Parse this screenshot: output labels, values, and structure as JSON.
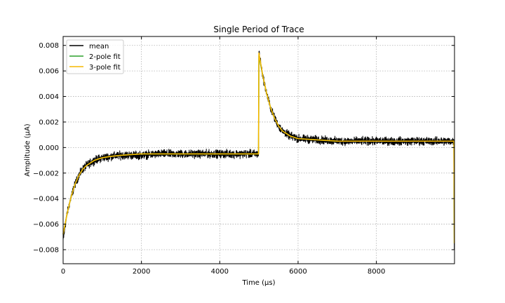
{
  "colors": {
    "mean": "#000000",
    "fit2": "#2ca02c",
    "fit3": "#f5b800",
    "grid": "#b0b0b0",
    "axes": "#000000",
    "background": "#ffffff"
  },
  "chart_data": {
    "type": "line",
    "title": "Single Period of Trace",
    "xlabel": "Time (μs)",
    "ylabel": "Amplitude (μA)",
    "xlim": [
      0,
      9995
    ],
    "ylim": [
      -0.0091,
      0.0087
    ],
    "xticks": [
      0,
      2000,
      4000,
      6000,
      8000
    ],
    "xtick_labels": [
      "0",
      "2000",
      "4000",
      "6000",
      "8000"
    ],
    "yticks": [
      -0.008,
      -0.006,
      -0.004,
      -0.002,
      0.0,
      0.002,
      0.004,
      0.006,
      0.008
    ],
    "ytick_labels": [
      "−0.008",
      "−0.006",
      "−0.004",
      "−0.002",
      "0.000",
      "0.002",
      "0.004",
      "0.006",
      "0.008"
    ],
    "grid": true,
    "legend_position": "top-left",
    "series": [
      {
        "name": "mean",
        "color": "#000000",
        "noise_amplitude": 0.00045,
        "x": [
          0,
          50,
          100,
          200,
          300,
          400,
          500,
          600,
          800,
          1000,
          1200,
          1500,
          2000,
          2500,
          3000,
          3500,
          4000,
          4500,
          4990,
          5000,
          5050,
          5100,
          5200,
          5300,
          5400,
          5500,
          5600,
          5800,
          6000,
          6500,
          7000,
          8000,
          9000,
          9980,
          9990
        ],
        "y": [
          -0.0073,
          -0.0062,
          -0.0052,
          -0.0039,
          -0.0029,
          -0.0022,
          -0.0017,
          -0.0014,
          -0.001,
          -0.0008,
          -0.0007,
          -0.0006,
          -0.0006,
          -0.0005,
          -0.0005,
          -0.0005,
          -0.0005,
          -0.0005,
          -0.0005,
          0.0076,
          0.0065,
          0.0056,
          0.0042,
          0.0031,
          0.0023,
          0.0017,
          0.0013,
          0.0009,
          0.0007,
          0.0006,
          0.0005,
          0.0005,
          0.0005,
          0.0005,
          -0.008
        ]
      },
      {
        "name": "2-pole fit",
        "color": "#2ca02c",
        "x": [
          0,
          50,
          100,
          200,
          300,
          400,
          500,
          600,
          800,
          1000,
          1200,
          1500,
          2000,
          3000,
          4000,
          4990,
          5000,
          5050,
          5100,
          5200,
          5300,
          5400,
          5500,
          5600,
          5800,
          6000,
          6500,
          7000,
          8000,
          9000,
          9980,
          9990
        ],
        "y": [
          -0.0068,
          -0.006,
          -0.0052,
          -0.0039,
          -0.0029,
          -0.0022,
          -0.0017,
          -0.0014,
          -0.001,
          -0.0008,
          -0.0007,
          -0.0006,
          -0.0005,
          -0.0005,
          -0.0005,
          -0.0005,
          0.0072,
          0.0064,
          0.0056,
          0.0042,
          0.0031,
          0.0023,
          0.0017,
          0.0013,
          0.0009,
          0.0007,
          0.0006,
          0.0005,
          0.0005,
          0.0005,
          0.0005,
          -0.0075
        ]
      },
      {
        "name": "3-pole fit",
        "color": "#f5b800",
        "x": [
          0,
          50,
          100,
          200,
          300,
          400,
          500,
          600,
          800,
          1000,
          1200,
          1500,
          2000,
          3000,
          4000,
          4990,
          5000,
          5050,
          5100,
          5200,
          5300,
          5400,
          5500,
          5600,
          5800,
          6000,
          6500,
          7000,
          8000,
          9000,
          9980,
          9990
        ],
        "y": [
          -0.0068,
          -0.006,
          -0.0052,
          -0.0039,
          -0.0029,
          -0.0022,
          -0.0017,
          -0.0014,
          -0.001,
          -0.0008,
          -0.0007,
          -0.0006,
          -0.0005,
          -0.0005,
          -0.0005,
          -0.0005,
          0.0074,
          0.0065,
          0.0056,
          0.0042,
          0.0031,
          0.0023,
          0.0017,
          0.0013,
          0.0009,
          0.0007,
          0.0006,
          0.0005,
          0.0005,
          0.0005,
          0.0005,
          -0.0075
        ]
      }
    ]
  }
}
